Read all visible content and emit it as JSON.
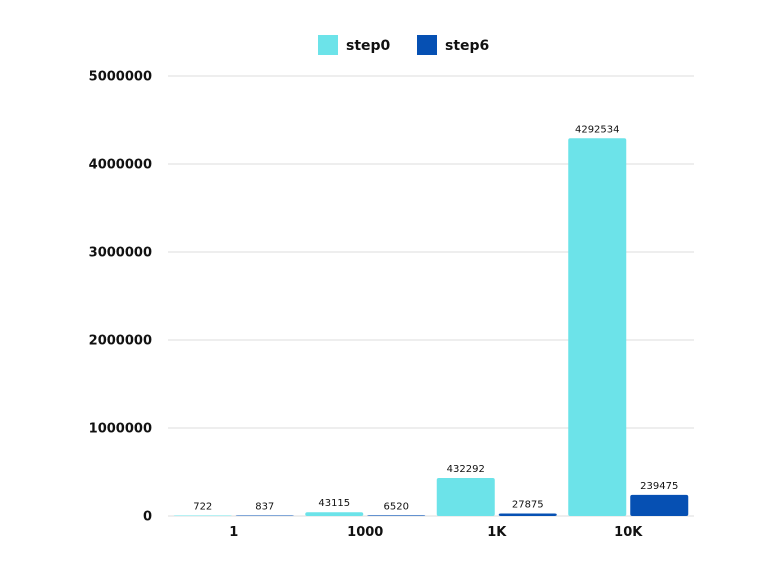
{
  "chart_data": {
    "type": "bar",
    "categories": [
      "1",
      "1000",
      "1K",
      "10K"
    ],
    "series": [
      {
        "name": "step0",
        "values": [
          722,
          43115,
          432292,
          4292534
        ],
        "color": "#6ce3e9"
      },
      {
        "name": "step6",
        "values": [
          837,
          6520,
          27875,
          239475
        ],
        "color": "#0650b3"
      }
    ],
    "title": "",
    "xlabel": "",
    "ylabel": "",
    "ylim": [
      0,
      5000000
    ],
    "yticks": [
      "0",
      "1000000",
      "2000000",
      "3000000",
      "4000000",
      "5000000"
    ],
    "grid": true,
    "legend_position": "top-center"
  }
}
